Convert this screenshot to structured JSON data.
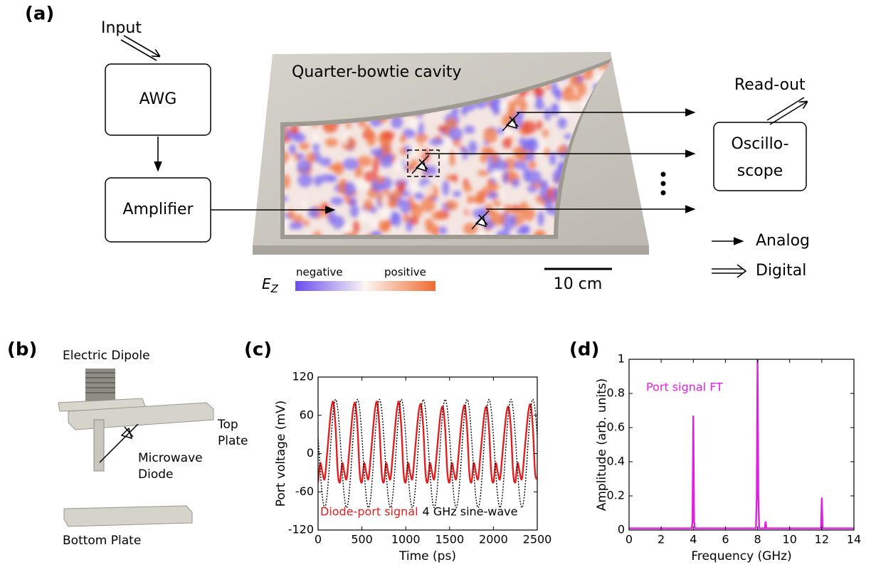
{
  "panel_labels": [
    "(a)",
    "(b)",
    "(c)",
    "(d)"
  ],
  "panel_a": {
    "input": "Input",
    "awg": "AWG",
    "amplifier": "Amplifier",
    "cavity_title": "Quarter-bowtie cavity",
    "readout": "Read-out",
    "oscilloscope": [
      "Oscillo-",
      "scope"
    ],
    "legend_analog": "Analog",
    "legend_digital": "Digital",
    "colorbar_symbol": "E",
    "colorbar_subscript": "Z",
    "colorbar_negative": "negative",
    "colorbar_positive": "positive",
    "scale_bar": "10 cm"
  },
  "panel_b": {
    "dipole": "Electric Dipole",
    "top_plate": [
      "Top",
      "Plate"
    ],
    "diode": [
      "Microwave",
      "Diode"
    ],
    "bottom_plate": "Bottom Plate"
  },
  "chart_data": [
    {
      "type": "line",
      "xlabel": "Time (ps)",
      "ylabel": "Port voltage (mV)",
      "xlim": [
        0,
        2500
      ],
      "xticks": [
        0,
        500,
        1000,
        1500,
        2000,
        2500
      ],
      "ylim": [
        -120,
        120
      ],
      "yticks": [
        -120,
        -60,
        0,
        60,
        120
      ],
      "legend": "lower center",
      "x": [
        0,
        25,
        50,
        75,
        100,
        125,
        150,
        175,
        200,
        225,
        250,
        275,
        300,
        325,
        350,
        375,
        400,
        425,
        450,
        475,
        500,
        525,
        550,
        575,
        600,
        625,
        650,
        675,
        700,
        725,
        750,
        775,
        800,
        825,
        850,
        875,
        900,
        925,
        950,
        975,
        1000,
        1025,
        1050,
        1075,
        1100,
        1125,
        1150,
        1175,
        1200,
        1225,
        1250,
        1275,
        1300,
        1325,
        1350,
        1375,
        1400,
        1425,
        1450,
        1475,
        1500,
        1525,
        1550,
        1575,
        1600,
        1625,
        1650,
        1675,
        1700,
        1725,
        1750,
        1775,
        1800,
        1825,
        1850,
        1875,
        1900,
        1925,
        1950,
        1975,
        2000,
        2025,
        2050,
        2075,
        2100,
        2125,
        2150,
        2175,
        2200,
        2225,
        2250,
        2275,
        2300,
        2325,
        2350,
        2375,
        2400,
        2425,
        2450,
        2475,
        2500
      ],
      "series": [
        {
          "name": "Diode-port signal",
          "color": "#e02020",
          "style": "solid",
          "values": [
            -45,
            -15,
            -30,
            -40,
            -5,
            35,
            70,
            80,
            40,
            -30,
            -45,
            -15,
            -30,
            -40,
            -5,
            35,
            70,
            78,
            40,
            -30,
            -45,
            -15,
            -30,
            -40,
            -5,
            35,
            70,
            80,
            40,
            -30,
            -45,
            -15,
            -30,
            -40,
            -5,
            35,
            70,
            80,
            40,
            -30,
            -45,
            -15,
            -30,
            -40,
            -5,
            35,
            68,
            76,
            40,
            -30,
            -45,
            -15,
            -30,
            -40,
            -5,
            33,
            65,
            72,
            38,
            -30,
            -45,
            -15,
            -30,
            -40,
            -5,
            34,
            66,
            74,
            38,
            -30,
            -45,
            -15,
            -30,
            -40,
            -5,
            33,
            65,
            72,
            38,
            -30,
            -45,
            -15,
            -30,
            -40,
            -5,
            33,
            65,
            72,
            38,
            -30,
            -45,
            -15,
            -30,
            -40,
            -5,
            34,
            67,
            76,
            40,
            -30,
            -40
          ]
        },
        {
          "name": "4 GHz sine-wave",
          "color": "#000000",
          "style": "dotted",
          "values": [
            26.3,
            -26.3,
            -68.8,
            -85,
            -68.8,
            -26.3,
            26.3,
            68.8,
            85,
            68.8,
            26.3,
            -26.3,
            -68.8,
            -85,
            -68.8,
            -26.3,
            26.3,
            68.8,
            85,
            68.8,
            26.3,
            -26.3,
            -68.8,
            -85,
            -68.8,
            -26.3,
            26.3,
            68.8,
            85,
            68.8,
            26.3,
            -26.3,
            -68.8,
            -85,
            -68.8,
            -26.3,
            26.3,
            68.8,
            85,
            68.8,
            26.3,
            -26.3,
            -68.8,
            -85,
            -68.8,
            -26.3,
            26.3,
            68.8,
            85,
            68.8,
            26.3,
            -26.3,
            -68.8,
            -85,
            -68.8,
            -26.3,
            26.3,
            68.8,
            85,
            68.8,
            26.3,
            -26.3,
            -68.8,
            -85,
            -68.8,
            -26.3,
            26.3,
            68.8,
            85,
            68.8,
            26.3,
            -26.3,
            -68.8,
            -85,
            -68.8,
            -26.3,
            26.3,
            68.8,
            85,
            68.8,
            26.3,
            -26.3,
            -68.8,
            -85,
            -68.8,
            -26.3,
            26.3,
            68.8,
            85,
            68.8,
            26.3,
            -26.3,
            -68.8,
            -85,
            -68.8,
            -26.3,
            26.3,
            68.8,
            85,
            68.8,
            26.3
          ]
        }
      ]
    },
    {
      "type": "line",
      "xlabel": "Frequency (GHz)",
      "ylabel": "Amplitude (arb. units)",
      "xlim": [
        0,
        14
      ],
      "xticks": [
        0,
        2,
        4,
        6,
        8,
        10,
        12,
        14
      ],
      "ylim": [
        0,
        1
      ],
      "yticks": [
        0,
        0.2,
        0.4,
        0.6,
        0.8,
        1
      ],
      "legend": "upper left",
      "x": [
        0,
        3.9,
        3.95,
        4,
        4.05,
        4.1,
        7.9,
        7.95,
        8,
        8.05,
        8.1,
        8.45,
        8.5,
        8.55,
        11.95,
        12,
        12.05,
        14
      ],
      "series": [
        {
          "name": "Port signal FT",
          "color": "#e020e0",
          "style": "solid",
          "values": [
            0.01,
            0.01,
            0.05,
            0.67,
            0.05,
            0.01,
            0.01,
            0.2,
            1,
            0.2,
            0.01,
            0.01,
            0.05,
            0.01,
            0.01,
            0.19,
            0.01,
            0.01
          ]
        }
      ]
    }
  ]
}
